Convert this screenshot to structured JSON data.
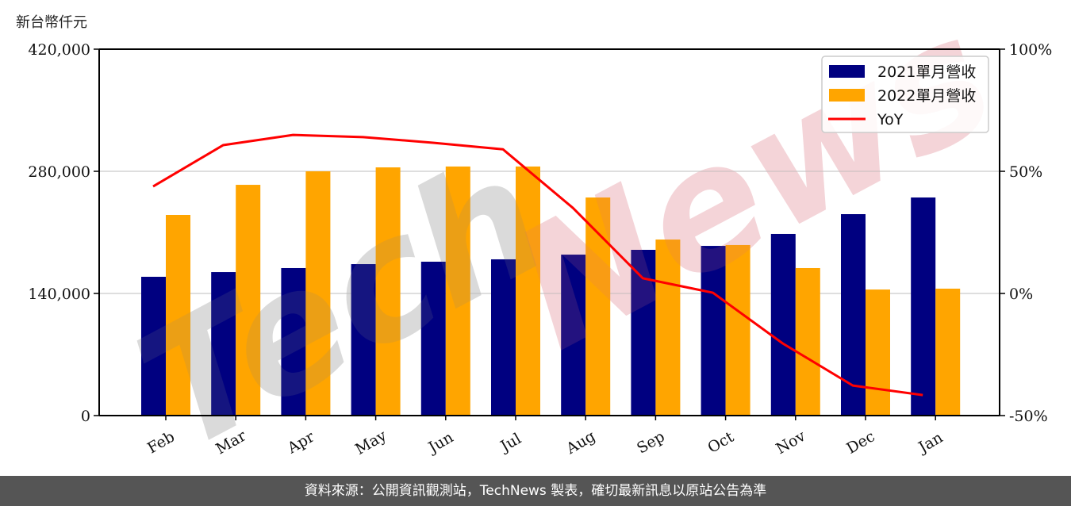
{
  "unit_label": "新台幣仟元",
  "footer": "資料來源：公開資訊觀測站，TechNews 製表，確切最新訊息以原站公告為準",
  "watermark": "TechNews",
  "colors": {
    "series_2021": "#000080",
    "series_2022": "#FFA500",
    "yoy": "#FF0000",
    "grid": "#D3D3D3",
    "footer_bg": "#555555"
  },
  "chart_data": {
    "type": "bar",
    "title": "",
    "xlabel": "",
    "ylabel": "新台幣仟元",
    "y2label": "",
    "categories": [
      "Feb",
      "Mar",
      "Apr",
      "May",
      "Jun",
      "Jul",
      "Aug",
      "Sep",
      "Oct",
      "Nov",
      "Dec",
      "Jan"
    ],
    "series": [
      {
        "name": "2021單月營收",
        "type": "bar",
        "axis": "left",
        "values": [
          159100,
          164500,
          169100,
          173600,
          176400,
          179100,
          184500,
          190000,
          194500,
          208200,
          230900,
          250000
        ]
      },
      {
        "name": "2022單月營收",
        "type": "bar",
        "axis": "left",
        "values": [
          230000,
          264500,
          280000,
          284500,
          285500,
          285500,
          250000,
          201800,
          195500,
          169100,
          144500,
          145500
        ]
      },
      {
        "name": "YoY",
        "type": "line",
        "axis": "right",
        "unit": "%",
        "values": [
          43.8,
          60.7,
          64.9,
          64.0,
          61.7,
          59.0,
          35.0,
          6.2,
          0.3,
          -20.5,
          -37.7,
          -41.6
        ]
      }
    ],
    "ylim": [
      0,
      420000
    ],
    "y2lim": [
      -50,
      100
    ],
    "yticks": [
      "0",
      "140,000",
      "280,000",
      "420,000"
    ],
    "y2ticks": [
      "-50%",
      "0%",
      "50%",
      "100%"
    ],
    "grid": true,
    "legend_position": "upper right",
    "legend": [
      "2021單月營收",
      "2022單月營收",
      "YoY"
    ]
  }
}
